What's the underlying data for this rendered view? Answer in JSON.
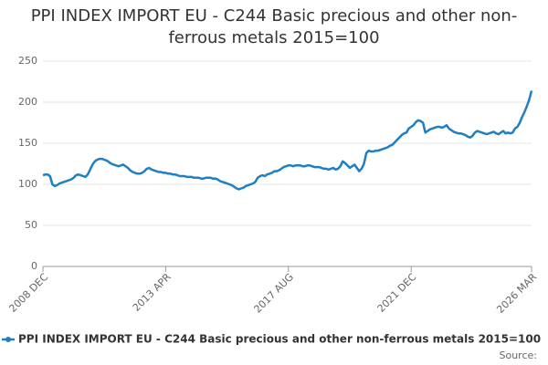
{
  "chart_data": {
    "type": "line",
    "title": "PPI INDEX IMPORT EU - C244 Basic precious and other non-ferrous metals 2015=100",
    "source": "Source:",
    "categories": [
      "2008 DEC",
      null,
      null,
      null,
      null,
      null,
      null,
      null,
      null,
      null,
      null,
      null,
      null,
      null,
      null,
      null,
      null,
      null,
      null,
      null,
      null,
      null,
      null,
      null,
      null,
      null,
      null,
      null,
      null,
      null,
      null,
      null,
      null,
      null,
      null,
      null,
      null,
      null,
      null,
      null,
      null,
      null,
      null,
      null,
      null,
      null,
      null,
      null,
      null,
      null,
      null,
      null,
      "2013 APR",
      null,
      null,
      null,
      null,
      null,
      null,
      null,
      null,
      null,
      null,
      null,
      null,
      null,
      null,
      null,
      null,
      null,
      null,
      null,
      null,
      null,
      null,
      null,
      null,
      null,
      null,
      null,
      null,
      null,
      null,
      null,
      null,
      null,
      null,
      null,
      null,
      null,
      null,
      null,
      null,
      null,
      null,
      null,
      null,
      null,
      null,
      null,
      null,
      null,
      null,
      null,
      "2017 AUG",
      null,
      null,
      null,
      null,
      null,
      null,
      null,
      null,
      null,
      null,
      null,
      null,
      null,
      null,
      null,
      null,
      null,
      null,
      null,
      null,
      null,
      null,
      null,
      null,
      null,
      null,
      null,
      null,
      null,
      null,
      null,
      null,
      null,
      null,
      null,
      null,
      null,
      null,
      null,
      null,
      null,
      null,
      null,
      null,
      null,
      null,
      null,
      null,
      null,
      null,
      null,
      "2021 DEC",
      null,
      null,
      null,
      null,
      null,
      null,
      null,
      null,
      null,
      null,
      null,
      null,
      null,
      null,
      null,
      null,
      null,
      null,
      null,
      null,
      null,
      null,
      null,
      null,
      null,
      null,
      null,
      null,
      null,
      null,
      null,
      null,
      null,
      null,
      null,
      null,
      null,
      null,
      null,
      null,
      null,
      null,
      null,
      null,
      null,
      null,
      null,
      null,
      null,
      null,
      "2026 MAR"
    ],
    "series": [
      {
        "name": "PPI INDEX IMPORT EU - C244 Basic precious and other non-ferrous metals 2015=100",
        "color": "#1f7fc0",
        "values": [
          111,
          112,
          112,
          110,
          100,
          98,
          99,
          101,
          102,
          103,
          104,
          105,
          106,
          108,
          111,
          112,
          111,
          110,
          109,
          112,
          118,
          124,
          128,
          130,
          131,
          131,
          130,
          129,
          127,
          125,
          124,
          123,
          122,
          123,
          124,
          122,
          120,
          117,
          115,
          114,
          113,
          113,
          114,
          116,
          119,
          120,
          118,
          117,
          116,
          115,
          115,
          114,
          114,
          113,
          113,
          112,
          112,
          111,
          110,
          110,
          110,
          109,
          109,
          109,
          108,
          108,
          108,
          107,
          107,
          108,
          108,
          108,
          107,
          107,
          106,
          104,
          103,
          102,
          101,
          100,
          99,
          97,
          95,
          94,
          95,
          96,
          98,
          99,
          100,
          101,
          103,
          108,
          110,
          111,
          110,
          112,
          113,
          114,
          116,
          116,
          117,
          119,
          121,
          122,
          123,
          123,
          122,
          123,
          123,
          123,
          122,
          122,
          123,
          123,
          122,
          121,
          121,
          121,
          120,
          119,
          119,
          118,
          119,
          120,
          118,
          119,
          122,
          128,
          126,
          123,
          120,
          122,
          124,
          120,
          116,
          119,
          125,
          138,
          141,
          140,
          140,
          141,
          141,
          142,
          143,
          144,
          145,
          147,
          148,
          151,
          154,
          157,
          160,
          162,
          163,
          168,
          170,
          172,
          176,
          178,
          177,
          175,
          163,
          165,
          167,
          168,
          169,
          170,
          170,
          169,
          170,
          172,
          168,
          166,
          164,
          163,
          162,
          162,
          161,
          160,
          158,
          157,
          159,
          163,
          165,
          164,
          163,
          162,
          161,
          162,
          163,
          164,
          162,
          161,
          163,
          165,
          162,
          163,
          162,
          163,
          168,
          170,
          175,
          182,
          188,
          195,
          203,
          214
        ]
      }
    ],
    "ylim": [
      0,
      250
    ],
    "yticks": [
      0,
      50,
      100,
      150,
      200,
      250
    ],
    "grid": true
  }
}
